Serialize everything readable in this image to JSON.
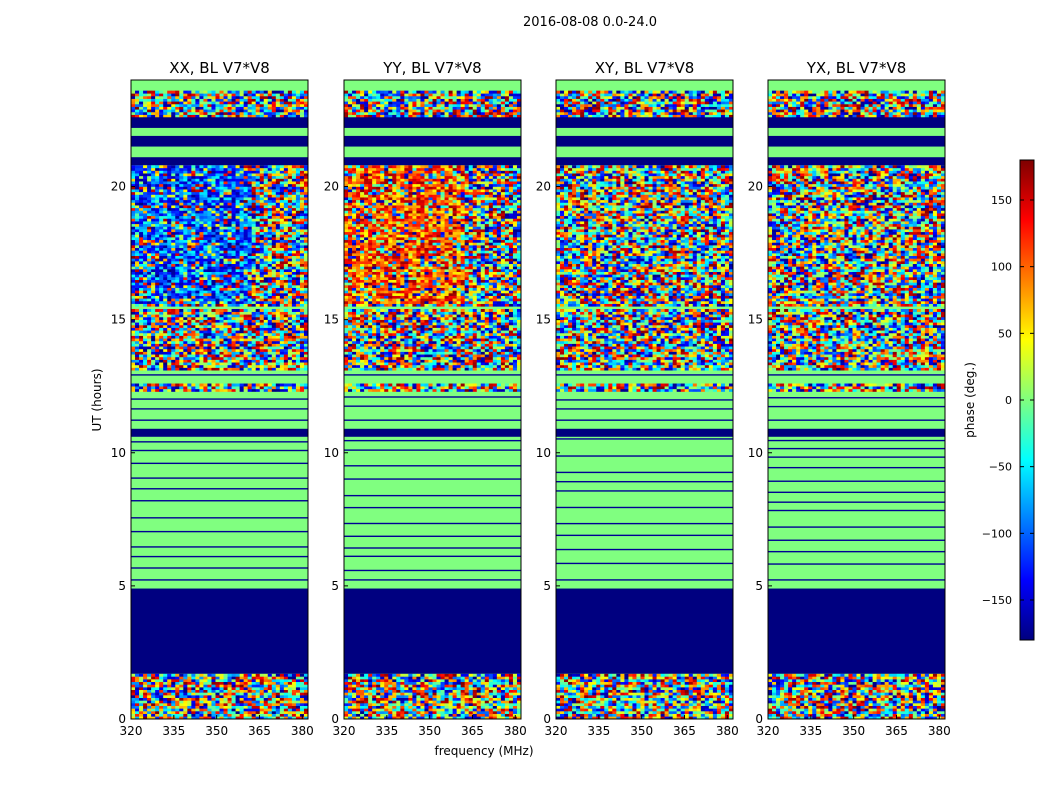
{
  "figure": {
    "suptitle": "2016-08-08 0.0-24.0"
  },
  "chart_data": [
    {
      "type": "heatmap",
      "title": "XX, BL V7*V8",
      "polarization": "XX",
      "xlabel": "frequency (MHz)",
      "ylabel": "UT (hours)",
      "xlim": [
        320,
        382
      ],
      "ylim": [
        0,
        24
      ],
      "xticks": [
        320,
        335,
        350,
        365,
        380
      ],
      "yticks": [
        0,
        5,
        10,
        15,
        20
      ],
      "flagged_bands_hours": [
        [
          1.7,
          4.9
        ],
        [
          22.2,
          22.6
        ],
        [
          21.5,
          21.9
        ],
        [
          20.8,
          21.1
        ],
        [
          10.6,
          10.9
        ]
      ],
      "quiet_bands_hours": [
        [
          4.9,
          10.6
        ],
        [
          10.9,
          12.3
        ],
        [
          12.6,
          13.1
        ]
      ]
    },
    {
      "type": "heatmap",
      "title": "YY, BL V7*V8",
      "polarization": "YY",
      "xlabel": "frequency (MHz)",
      "ylabel": "UT (hours)",
      "xlim": [
        320,
        382
      ],
      "ylim": [
        0,
        24
      ],
      "xticks": [
        320,
        335,
        350,
        365,
        380
      ],
      "yticks": [
        0,
        5,
        10,
        15,
        20
      ],
      "flagged_bands_hours": [
        [
          1.7,
          4.9
        ],
        [
          22.2,
          22.6
        ],
        [
          21.5,
          21.9
        ],
        [
          20.8,
          21.1
        ],
        [
          10.6,
          10.9
        ]
      ],
      "quiet_bands_hours": [
        [
          4.9,
          10.6
        ],
        [
          10.9,
          12.3
        ],
        [
          12.6,
          13.1
        ]
      ]
    },
    {
      "type": "heatmap",
      "title": "XY, BL V7*V8",
      "polarization": "XY",
      "xlabel": "frequency (MHz)",
      "ylabel": "UT (hours)",
      "xlim": [
        320,
        382
      ],
      "ylim": [
        0,
        24
      ],
      "xticks": [
        320,
        335,
        350,
        365,
        380
      ],
      "yticks": [
        0,
        5,
        10,
        15,
        20
      ],
      "flagged_bands_hours": [
        [
          1.7,
          4.9
        ],
        [
          22.2,
          22.6
        ],
        [
          21.5,
          21.9
        ],
        [
          20.8,
          21.1
        ],
        [
          10.6,
          10.9
        ]
      ],
      "quiet_bands_hours": [
        [
          4.9,
          10.6
        ],
        [
          10.9,
          12.3
        ],
        [
          12.6,
          13.1
        ]
      ]
    },
    {
      "type": "heatmap",
      "title": "YX, BL V7*V8",
      "polarization": "YX",
      "xlabel": "frequency (MHz)",
      "ylabel": "UT (hours)",
      "xlim": [
        320,
        382
      ],
      "ylim": [
        0,
        24
      ],
      "xticks": [
        320,
        335,
        350,
        365,
        380
      ],
      "yticks": [
        0,
        5,
        10,
        15,
        20
      ],
      "flagged_bands_hours": [
        [
          1.7,
          4.9
        ],
        [
          22.2,
          22.6
        ],
        [
          21.5,
          21.9
        ],
        [
          20.8,
          21.1
        ],
        [
          10.6,
          10.9
        ]
      ],
      "quiet_bands_hours": [
        [
          4.9,
          10.6
        ],
        [
          10.9,
          12.3
        ],
        [
          12.6,
          13.1
        ]
      ]
    }
  ],
  "colorbar": {
    "label": "phase (deg.)",
    "range": [
      -180,
      180
    ],
    "ticks": [
      -150,
      -100,
      -50,
      0,
      50,
      100,
      150
    ],
    "colormap": "jet",
    "stops": [
      "#00007f",
      "#0000ff",
      "#007fff",
      "#00ffff",
      "#7fff7f",
      "#ffff00",
      "#ff7f00",
      "#ff0000",
      "#7f0000"
    ]
  },
  "shared_axis": {
    "xlabel": "frequency (MHz)",
    "ylabel": "UT (hours)"
  }
}
